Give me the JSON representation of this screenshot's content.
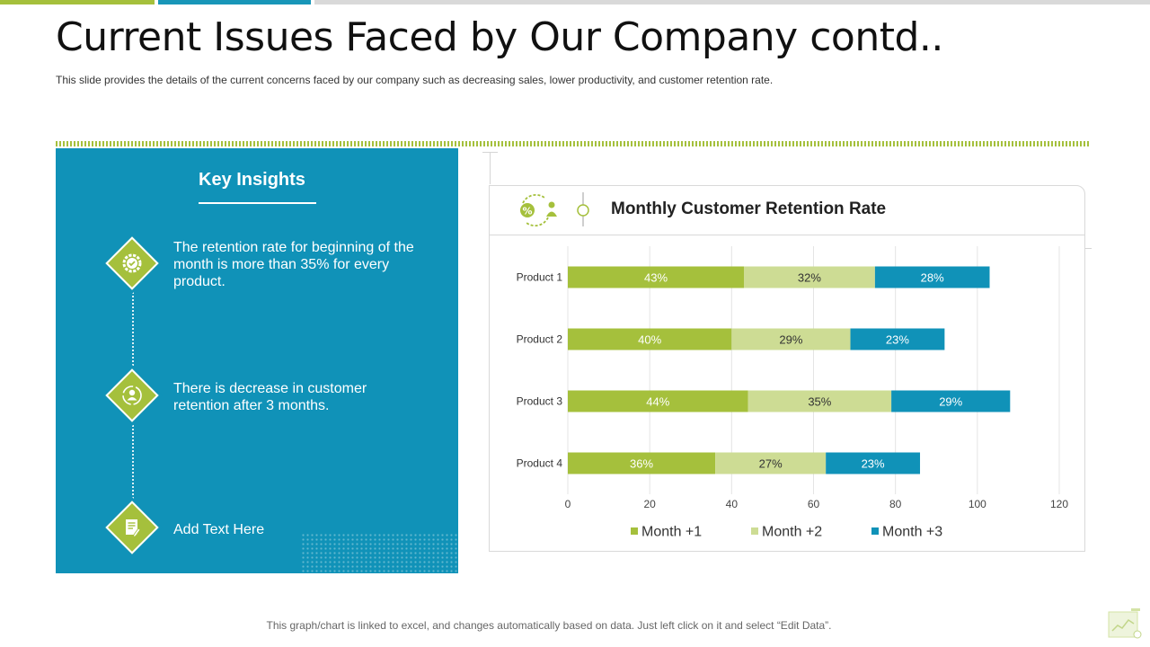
{
  "slide": {
    "title": "Current Issues Faced by Our Company contd..",
    "subtitle": "This slide provides  the details of the current concerns faced by our company such as decreasing  sales, lower productivity,  and customer retention rate.",
    "footer": "This graph/chart is linked to excel, and changes automatically based on data. Just left click on it and select “Edit Data”."
  },
  "insights": {
    "heading": "Key Insights",
    "items": [
      {
        "text": "The retention rate for beginning of the month is more than 35% for every product.",
        "icon": "gear-check-icon"
      },
      {
        "text": "There is decrease in customer retention after 3 months.",
        "icon": "user-cycle-icon"
      },
      {
        "text": "Add Text Here",
        "icon": "document-edit-icon"
      }
    ]
  },
  "colors": {
    "green": "#a5c03c",
    "light_green": "#cddc94",
    "blue": "#1092b8"
  },
  "chart_data": {
    "type": "bar",
    "orientation": "horizontal",
    "stacked": true,
    "title": "Monthly Customer Retention Rate",
    "categories": [
      "Product 1",
      "Product 2",
      "Product 3",
      "Product 4"
    ],
    "series": [
      {
        "name": "Month +1",
        "values": [
          43,
          40,
          44,
          36
        ],
        "labels": [
          "43%",
          "40%",
          "44%",
          "36%"
        ],
        "color": "#a5c03c"
      },
      {
        "name": "Month +2",
        "values": [
          32,
          29,
          35,
          27
        ],
        "labels": [
          "32%",
          "29%",
          "35%",
          "27%"
        ],
        "color": "#cddc94"
      },
      {
        "name": "Month +3",
        "values": [
          28,
          23,
          29,
          23
        ],
        "labels": [
          "28%",
          "23%",
          "29%",
          "23%"
        ],
        "color": "#1092b8"
      }
    ],
    "xlim": [
      0,
      120
    ],
    "xticks": [
      "0",
      "20",
      "40",
      "60",
      "80",
      "100",
      "120"
    ],
    "grid": true,
    "legend": "bottom"
  }
}
